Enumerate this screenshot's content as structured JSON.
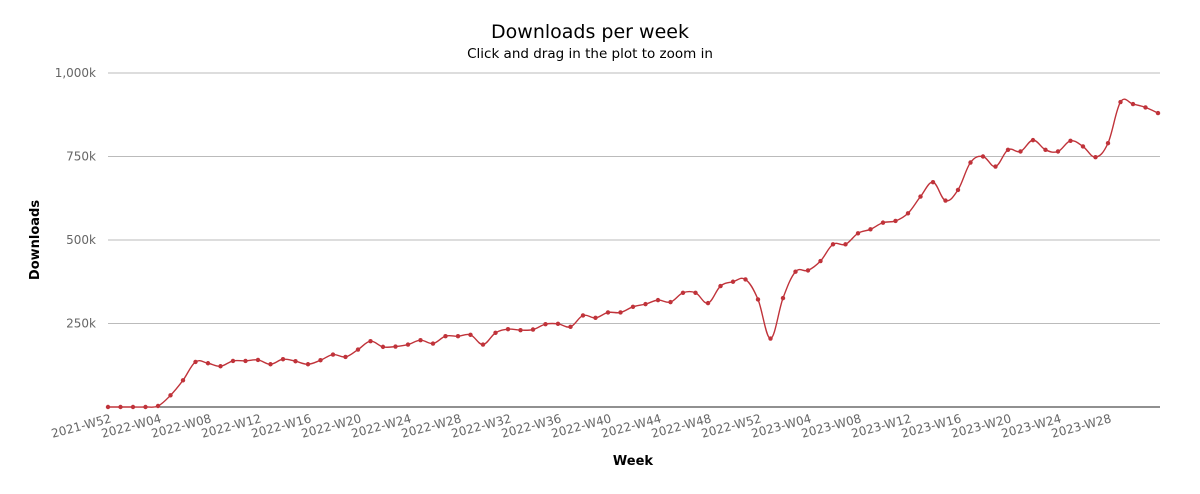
{
  "chart_data": {
    "type": "line",
    "title": "Downloads per week",
    "subtitle": "Click and drag in the plot to zoom in",
    "xlabel": "Week",
    "ylabel": "Downloads",
    "ylim": [
      0,
      1000000
    ],
    "y_ticks": [
      250000,
      500000,
      750000,
      1000000
    ],
    "y_tick_labels": [
      "250k",
      "500k",
      "750k",
      "1,000k"
    ],
    "x_tick_labels": [
      "2021-W52",
      "2022-W04",
      "2022-W08",
      "2022-W12",
      "2022-W16",
      "2022-W20",
      "2022-W24",
      "2022-W28",
      "2022-W32",
      "2022-W36",
      "2022-W40",
      "2022-W44",
      "2022-W48",
      "2022-W52",
      "2023-W04",
      "2023-W08",
      "2023-W12",
      "2023-W16",
      "2023-W20",
      "2023-W24",
      "2023-W28"
    ],
    "grid": true,
    "legend": "none",
    "colors": {
      "series": "#c0333a",
      "grid": "#bbbbbb",
      "tick_text": "#666666"
    },
    "x": [
      "2021-W52",
      "2022-W01",
      "2022-W02",
      "2022-W03",
      "2022-W04",
      "2022-W05",
      "2022-W06",
      "2022-W07",
      "2022-W08",
      "2022-W09",
      "2022-W10",
      "2022-W11",
      "2022-W12",
      "2022-W13",
      "2022-W14",
      "2022-W15",
      "2022-W16",
      "2022-W17",
      "2022-W18",
      "2022-W19",
      "2022-W20",
      "2022-W21",
      "2022-W22",
      "2022-W23",
      "2022-W24",
      "2022-W25",
      "2022-W26",
      "2022-W27",
      "2022-W28",
      "2022-W29",
      "2022-W30",
      "2022-W31",
      "2022-W32",
      "2022-W33",
      "2022-W34",
      "2022-W35",
      "2022-W36",
      "2022-W37",
      "2022-W38",
      "2022-W39",
      "2022-W40",
      "2022-W41",
      "2022-W42",
      "2022-W43",
      "2022-W44",
      "2022-W45",
      "2022-W46",
      "2022-W47",
      "2022-W48",
      "2022-W49",
      "2022-W50",
      "2022-W51",
      "2022-W52",
      "2023-W01",
      "2023-W02",
      "2023-W03",
      "2023-W04",
      "2023-W05",
      "2023-W06",
      "2023-W07",
      "2023-W08",
      "2023-W09",
      "2023-W10",
      "2023-W11",
      "2023-W12",
      "2023-W13",
      "2023-W14",
      "2023-W15",
      "2023-W16",
      "2023-W17",
      "2023-W18",
      "2023-W19",
      "2023-W20",
      "2023-W21",
      "2023-W22",
      "2023-W23",
      "2023-W24",
      "2023-W25",
      "2023-W26",
      "2023-W27",
      "2023-W28",
      "2023-W29",
      "2023-W30",
      "2023-W31",
      "2023-W32"
    ],
    "series": [
      {
        "values": [
          0,
          0,
          0,
          0,
          3000,
          35000,
          80000,
          135000,
          131000,
          122000,
          138000,
          138000,
          141000,
          128000,
          143000,
          137000,
          128000,
          140000,
          157000,
          150000,
          172000,
          197000,
          180000,
          181000,
          187000,
          200000,
          190000,
          212000,
          212000,
          216000,
          187000,
          222000,
          233000,
          230000,
          232000,
          248000,
          249000,
          240000,
          274000,
          267000,
          283000,
          283000,
          300000,
          308000,
          320000,
          314000,
          342000,
          342000,
          311000,
          362000,
          375000,
          382000,
          322000,
          205000,
          326000,
          405000,
          409000,
          437000,
          487000,
          487000,
          520000,
          532000,
          552000,
          557000,
          580000,
          630000,
          673000,
          618000,
          650000,
          732000,
          750000,
          720000,
          770000,
          765000,
          799000,
          770000,
          765000,
          797000,
          780000,
          748000,
          790000,
          913000,
          907000,
          897000,
          880000
        ]
      }
    ]
  }
}
